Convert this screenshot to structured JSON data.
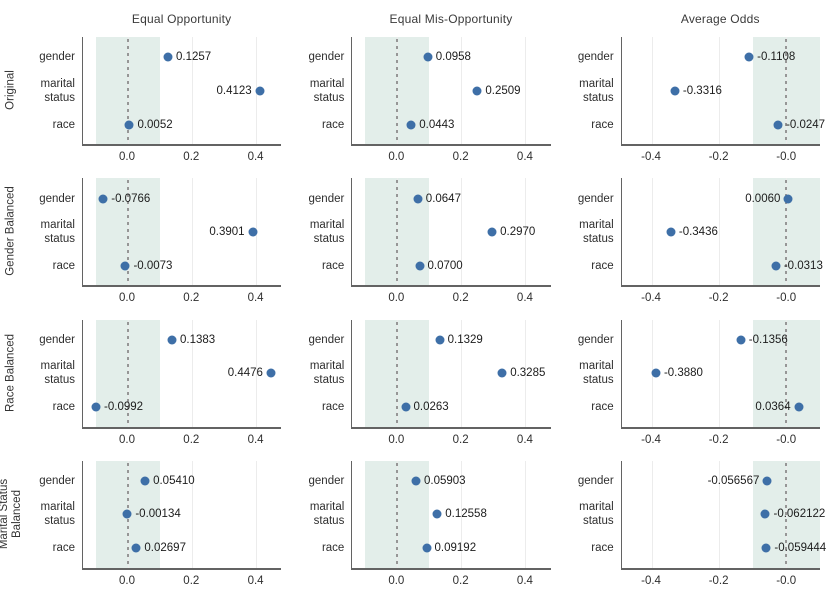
{
  "chart_data": {
    "type": "scatter",
    "layout": "facet-grid-4x3",
    "col_titles": [
      "Equal Opportunity",
      "Equal Mis-Opportunity",
      "Average Odds"
    ],
    "row_titles": [
      "Original",
      "Gender Balanced",
      "Race Balanced",
      "Marital Status Balanced"
    ],
    "row_title_lines": [
      [
        "Original"
      ],
      [
        "Gender Balanced"
      ],
      [
        "Race Balanced"
      ],
      [
        "Marital Status",
        "Balanced"
      ]
    ],
    "categories": [
      "gender",
      "marital status",
      "race"
    ],
    "category_lines": [
      [
        "gender"
      ],
      [
        "marital",
        "status"
      ],
      [
        "race"
      ]
    ],
    "fair_band": [
      -0.1,
      0.1
    ],
    "zero_line": 0.0,
    "grid": true,
    "x_axes": [
      {
        "min": -0.14,
        "max": 0.48,
        "ticks": [
          0.0,
          0.2,
          0.4
        ],
        "tick_labels": [
          "0.0",
          "0.2",
          "0.4"
        ]
      },
      {
        "min": -0.14,
        "max": 0.48,
        "ticks": [
          0.0,
          0.2,
          0.4
        ],
        "tick_labels": [
          "0.0",
          "0.2",
          "0.4"
        ]
      },
      {
        "min": -0.49,
        "max": 0.1,
        "ticks": [
          -0.4,
          -0.2,
          0.0
        ],
        "tick_labels": [
          "-0.4",
          "-0.2",
          "-0.0"
        ]
      }
    ],
    "cells": [
      [
        {
          "values": [
            0.1257,
            0.4123,
            0.0052
          ],
          "value_labels": [
            "0.1257",
            "0.4123",
            "0.0052"
          ],
          "label_side": [
            "right",
            "left",
            "right"
          ]
        },
        {
          "values": [
            0.0958,
            0.2509,
            0.0443
          ],
          "value_labels": [
            "0.0958",
            "0.2509",
            "0.0443"
          ],
          "label_side": [
            "right",
            "right",
            "right"
          ]
        },
        {
          "values": [
            -0.1108,
            -0.3316,
            -0.0247
          ],
          "value_labels": [
            "-0.1108",
            "-0.3316",
            "-0.0247"
          ],
          "label_side": [
            "right",
            "right",
            "right"
          ]
        }
      ],
      [
        {
          "values": [
            -0.0766,
            0.3901,
            -0.0073
          ],
          "value_labels": [
            "-0.0766",
            "0.3901",
            "-0.0073"
          ],
          "label_side": [
            "right",
            "left",
            "right"
          ]
        },
        {
          "values": [
            0.0647,
            0.297,
            0.07
          ],
          "value_labels": [
            "0.0647",
            "0.2970",
            "0.0700"
          ],
          "label_side": [
            "right",
            "right",
            "right"
          ]
        },
        {
          "values": [
            0.006,
            -0.3436,
            -0.0313
          ],
          "value_labels": [
            "0.0060",
            "-0.3436",
            "-0.0313"
          ],
          "label_side": [
            "left",
            "right",
            "right"
          ]
        }
      ],
      [
        {
          "values": [
            0.1383,
            0.4476,
            -0.0992
          ],
          "value_labels": [
            "0.1383",
            "0.4476",
            "-0.0992"
          ],
          "label_side": [
            "right",
            "left",
            "right"
          ]
        },
        {
          "values": [
            0.1329,
            0.3285,
            0.0263
          ],
          "value_labels": [
            "0.1329",
            "0.3285",
            "0.0263"
          ],
          "label_side": [
            "right",
            "right",
            "right"
          ]
        },
        {
          "values": [
            -0.1356,
            -0.388,
            0.0364
          ],
          "value_labels": [
            "-0.1356",
            "-0.3880",
            "0.0364"
          ],
          "label_side": [
            "right",
            "right",
            "left"
          ]
        }
      ],
      [
        {
          "values": [
            0.0541,
            -0.00134,
            0.02697
          ],
          "value_labels": [
            "0.05410",
            "-0.00134",
            "0.02697"
          ],
          "label_side": [
            "right",
            "right",
            "right"
          ]
        },
        {
          "values": [
            0.05903,
            0.12558,
            0.09192
          ],
          "value_labels": [
            "0.05903",
            "0.12558",
            "0.09192"
          ],
          "label_side": [
            "right",
            "right",
            "right"
          ]
        },
        {
          "values": [
            -0.056567,
            -0.062122,
            -0.059444
          ],
          "value_labels": [
            "-0.056567",
            "-0.062122",
            "-0.059444"
          ],
          "label_side": [
            "left",
            "right",
            "right"
          ]
        }
      ]
    ],
    "colors": {
      "dot": "#3e6fa7",
      "band": "#e3eeea",
      "zero_line": "#969696",
      "gridline": "#ececec",
      "spine": "#636363",
      "text": "#262626"
    }
  }
}
